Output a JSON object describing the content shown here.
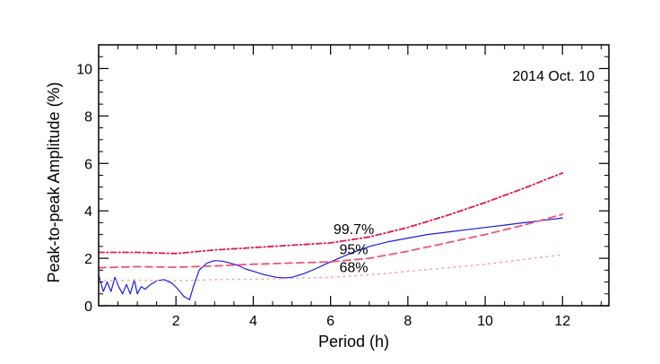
{
  "chart_data": {
    "type": "line",
    "title": "",
    "xlabel": "Period (h)",
    "ylabel": "Peak-to-peak Amplitude (%)",
    "xlim": [
      0,
      13.2
    ],
    "ylim": [
      0,
      11
    ],
    "xticks": [
      2,
      4,
      6,
      8,
      10,
      12
    ],
    "yticks": [
      0,
      2,
      4,
      6,
      8,
      10
    ],
    "grid": false,
    "annotation": "2014 Oct. 10",
    "annotation_position": "top-right",
    "colors": {
      "amplitude": "#1a1ae6",
      "ci997": "#e8174f",
      "ci95": "#f0556e",
      "ci68": "#f7a0b4"
    },
    "series": [
      {
        "name": "amplitude",
        "label": "",
        "style": "solid",
        "x": [
          0,
          0.12,
          0.22,
          0.32,
          0.42,
          0.52,
          0.62,
          0.72,
          0.82,
          0.92,
          1.0,
          1.1,
          1.2,
          1.35,
          1.5,
          1.7,
          1.9,
          2.05,
          2.2,
          2.35,
          2.45,
          2.6,
          2.8,
          3.0,
          3.2,
          3.4,
          3.6,
          3.8,
          4.0,
          4.3,
          4.6,
          4.8,
          5.0,
          5.3,
          5.6,
          6.0,
          6.5,
          7.0,
          7.5,
          8.0,
          8.5,
          9.0,
          9.5,
          10.0,
          10.5,
          11.0,
          11.5,
          12.0
        ],
        "values": [
          1.3,
          0.6,
          1.0,
          0.6,
          1.2,
          0.8,
          0.5,
          0.9,
          0.5,
          1.1,
          0.5,
          0.8,
          0.7,
          0.9,
          1.05,
          1.1,
          0.95,
          0.7,
          0.4,
          0.25,
          0.8,
          1.5,
          1.8,
          1.9,
          1.88,
          1.8,
          1.7,
          1.55,
          1.45,
          1.3,
          1.2,
          1.17,
          1.2,
          1.35,
          1.55,
          1.85,
          2.2,
          2.5,
          2.7,
          2.85,
          3.0,
          3.1,
          3.2,
          3.3,
          3.4,
          3.5,
          3.6,
          3.7
        ]
      },
      {
        "name": "ci997",
        "label": "99.7%",
        "style": "dashdot",
        "x": [
          0,
          1,
          2,
          3,
          4,
          5,
          6,
          7,
          8,
          9,
          10,
          11,
          12
        ],
        "values": [
          2.25,
          2.25,
          2.2,
          2.35,
          2.45,
          2.55,
          2.65,
          2.9,
          3.3,
          3.8,
          4.35,
          4.95,
          5.6
        ]
      },
      {
        "name": "ci95",
        "label": "95%",
        "style": "dashed",
        "x": [
          0,
          1,
          2,
          3,
          4,
          5,
          6,
          7,
          8,
          9,
          10,
          11,
          12
        ],
        "values": [
          1.6,
          1.65,
          1.62,
          1.68,
          1.75,
          1.8,
          1.85,
          2.0,
          2.3,
          2.65,
          3.0,
          3.4,
          3.85
        ]
      },
      {
        "name": "ci68",
        "label": "68%",
        "style": "dotted",
        "x": [
          0,
          1,
          2,
          3,
          4,
          5,
          6,
          7,
          8,
          9,
          10,
          11,
          12
        ],
        "values": [
          1.05,
          1.08,
          1.05,
          1.1,
          1.12,
          1.15,
          1.2,
          1.3,
          1.45,
          1.6,
          1.75,
          1.95,
          2.15
        ]
      }
    ]
  }
}
